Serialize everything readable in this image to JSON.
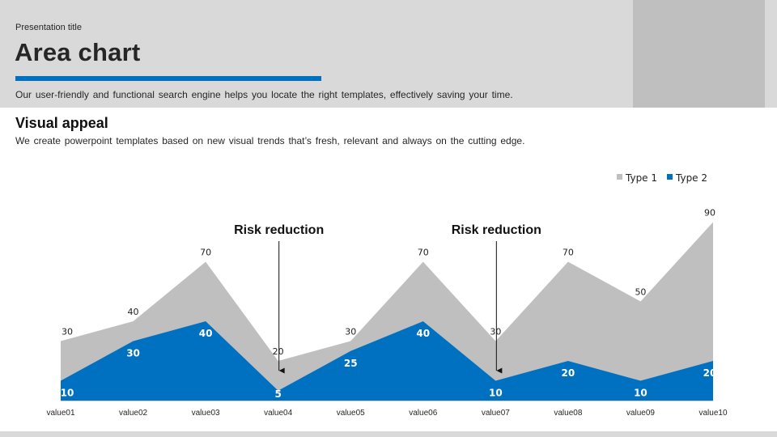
{
  "header": {
    "eyebrow": "Presentation title",
    "title": "Area chart",
    "description": "Our user-friendly and functional search engine helps you locate the right templates, effectively saving your time."
  },
  "section": {
    "title": "Visual appeal",
    "description": "We create powerpoint templates based on new visual trends that’s fresh, relevant and always on the cutting edge."
  },
  "colors": {
    "type1": "#bfbfbf",
    "type2": "#0070c0",
    "accent": "#0070c0"
  },
  "chart_data": {
    "type": "area",
    "stacked": false,
    "categories": [
      "value01",
      "value02",
      "value03",
      "value04",
      "value05",
      "value06",
      "value07",
      "value08",
      "value09",
      "value10"
    ],
    "series": [
      {
        "name": "Type 1",
        "values": [
          30,
          40,
          70,
          20,
          30,
          70,
          30,
          70,
          50,
          90
        ]
      },
      {
        "name": "Type 2",
        "values": [
          10,
          30,
          40,
          5,
          25,
          40,
          10,
          20,
          10,
          20
        ]
      }
    ],
    "ylim": [
      0,
      100
    ],
    "grid": false,
    "legend_position": "top-right",
    "annotations": [
      {
        "text": "Risk reduction",
        "category": "value04"
      },
      {
        "text": "Risk reduction",
        "category": "value07"
      }
    ]
  }
}
